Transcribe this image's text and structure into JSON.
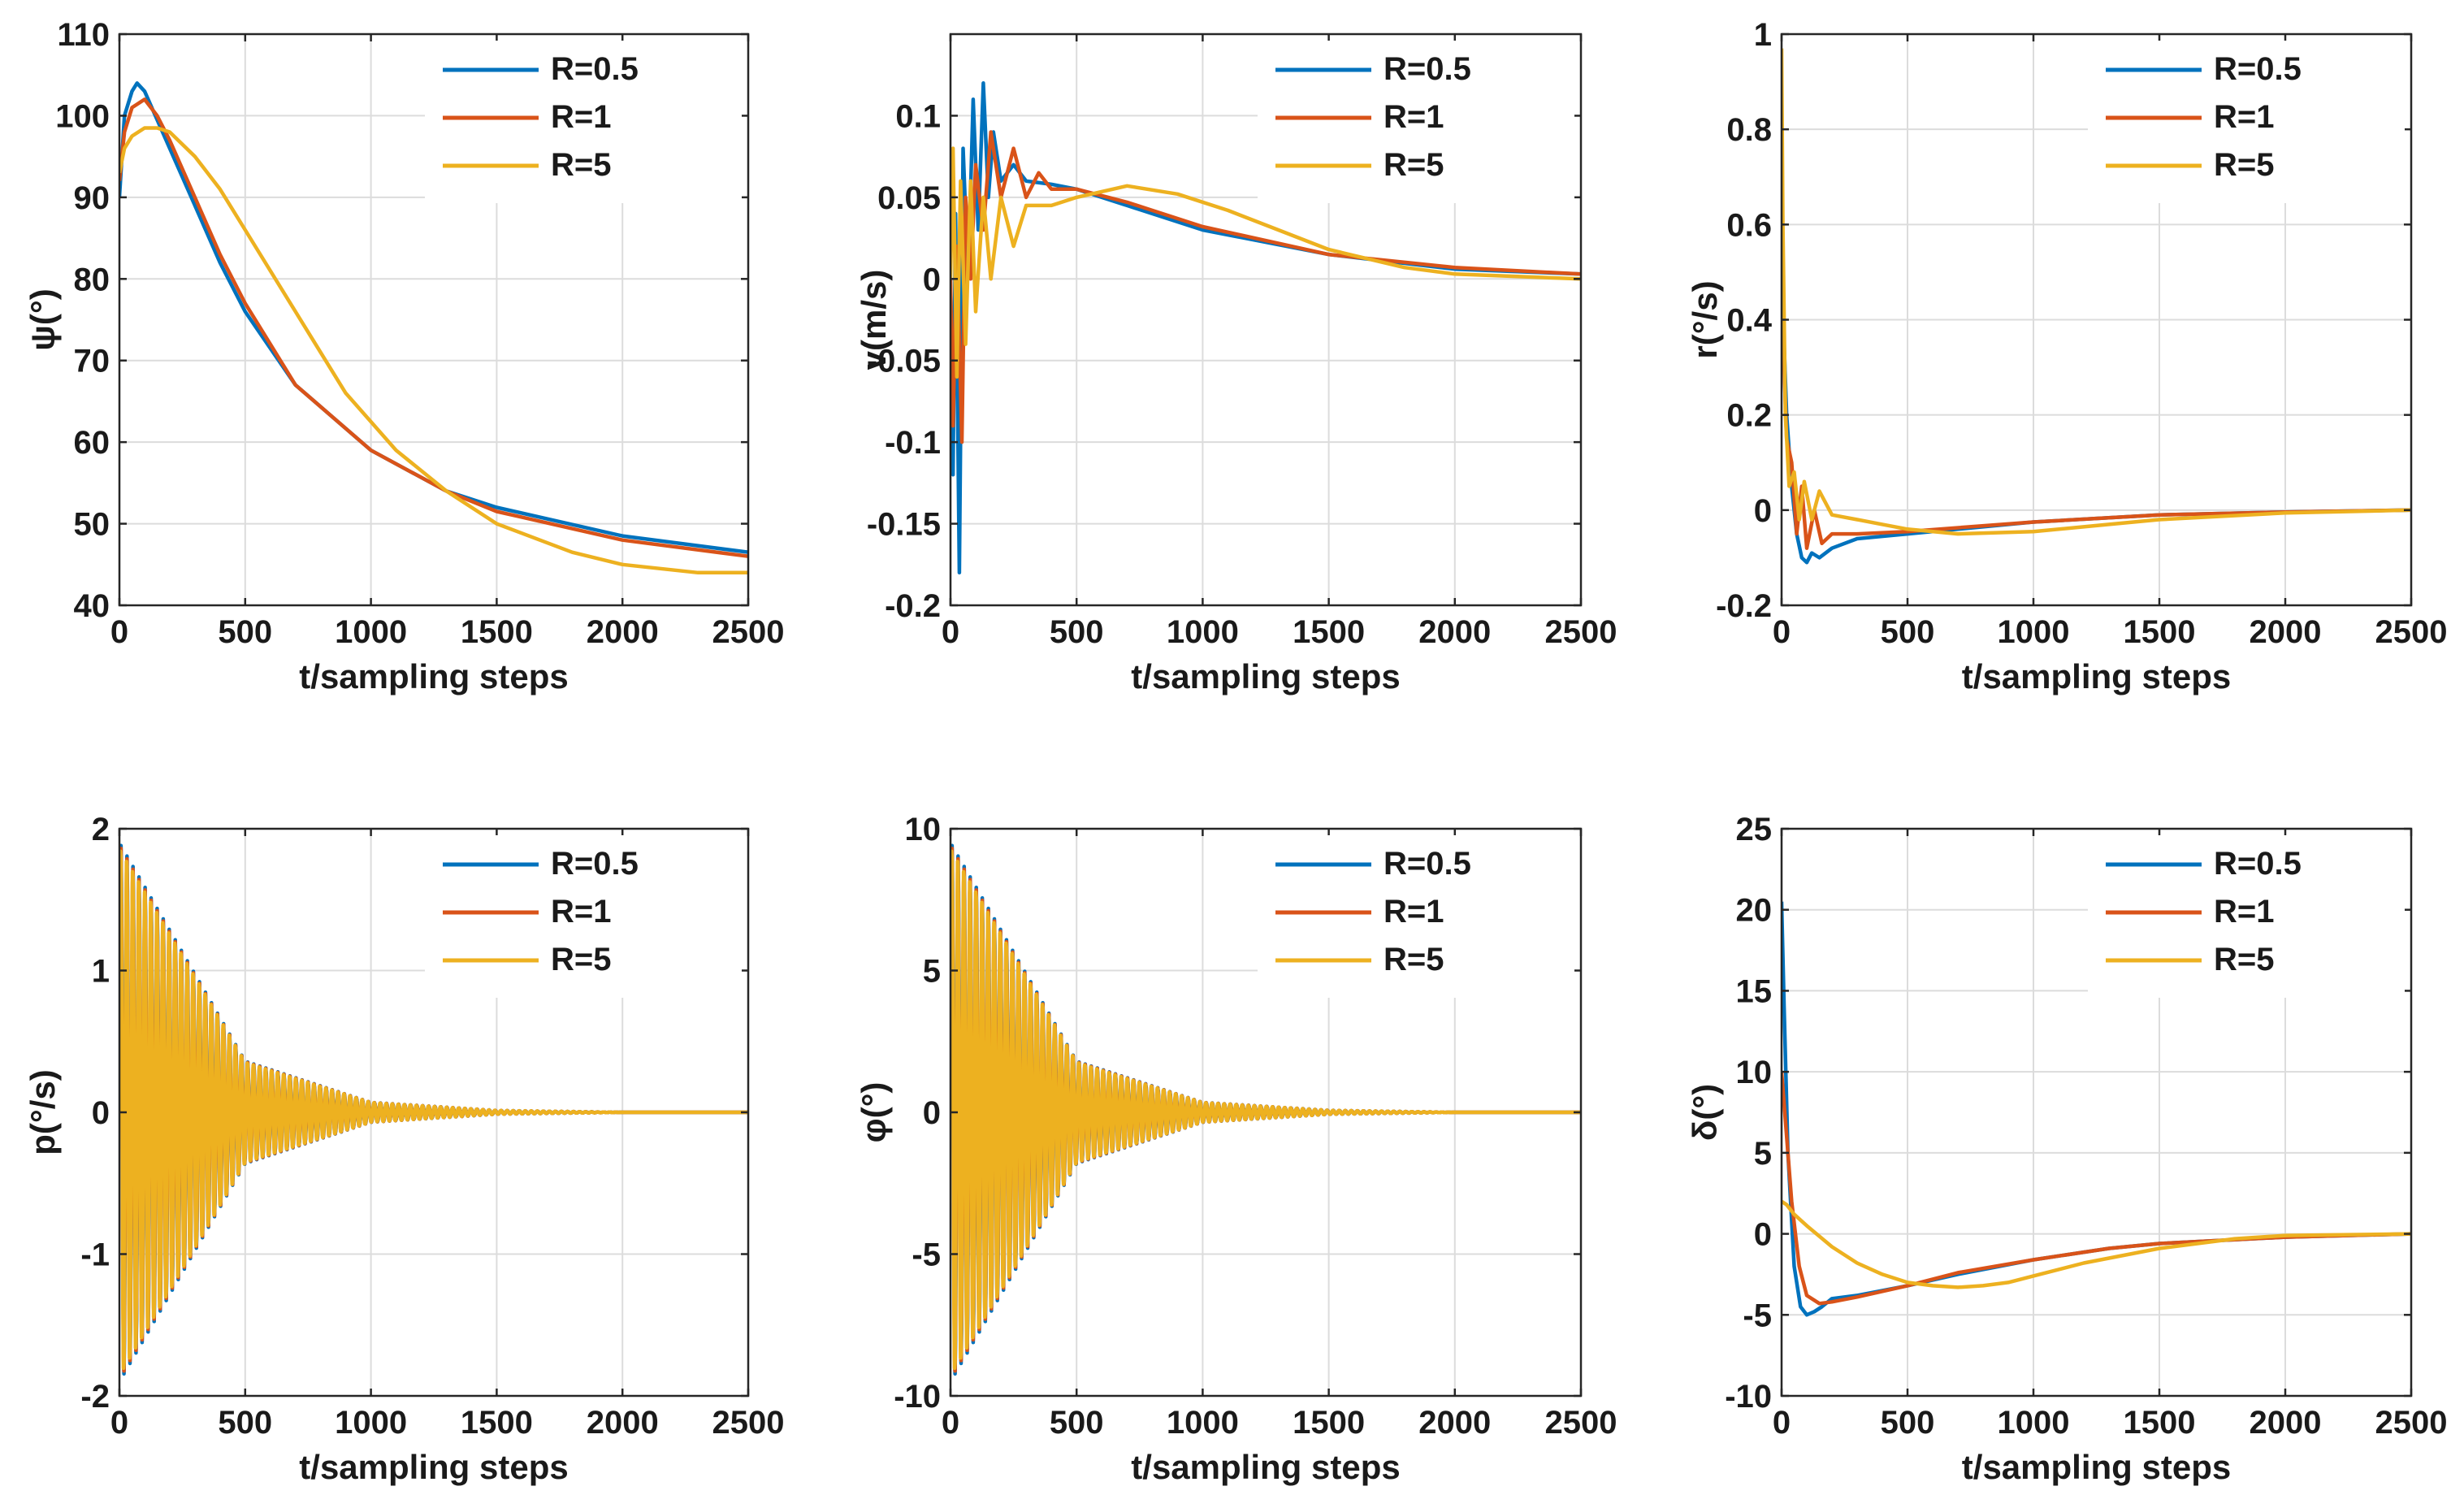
{
  "colors": {
    "R=0.5": "#0072BD",
    "R=1": "#D95319",
    "R=5": "#EDB120"
  },
  "chart_data": [
    {
      "type": "line",
      "ylabel": "ψ(°)",
      "xlabel": "t/sampling steps",
      "xlim": [
        0,
        2500
      ],
      "ylim": [
        40,
        110
      ],
      "xticks": [
        0,
        500,
        1000,
        1500,
        2000,
        2500
      ],
      "yticks": [
        40,
        50,
        60,
        70,
        80,
        90,
        100,
        110
      ],
      "grid": true,
      "legend": "top-right",
      "series": [
        {
          "name": "R=0.5",
          "x": [
            0,
            20,
            50,
            70,
            100,
            200,
            300,
            400,
            500,
            700,
            1000,
            1300,
            1500,
            2000,
            2500
          ],
          "y": [
            90,
            100,
            103,
            104,
            103,
            96,
            89,
            82,
            76,
            67,
            59,
            54,
            52,
            48.5,
            46.5
          ]
        },
        {
          "name": "R=1",
          "x": [
            0,
            20,
            50,
            100,
            150,
            200,
            300,
            400,
            500,
            700,
            1000,
            1300,
            1500,
            2000,
            2500
          ],
          "y": [
            92,
            98,
            101,
            102,
            100,
            97,
            90,
            83,
            77,
            67,
            59,
            54,
            51.5,
            48,
            46
          ]
        },
        {
          "name": "R=5",
          "x": [
            0,
            20,
            50,
            100,
            150,
            200,
            300,
            400,
            500,
            700,
            900,
            1100,
            1300,
            1500,
            1800,
            2000,
            2300,
            2500
          ],
          "y": [
            93,
            96,
            97.5,
            98.5,
            98.5,
            98,
            95,
            91,
            86,
            76,
            66,
            59,
            54,
            50,
            46.5,
            45,
            44,
            44
          ]
        }
      ]
    },
    {
      "type": "line",
      "ylabel": "v(m/s)",
      "xlabel": "t/sampling steps",
      "xlim": [
        0,
        2500
      ],
      "ylim": [
        -0.2,
        0.15
      ],
      "xticks": [
        0,
        500,
        1000,
        1500,
        2000,
        2500
      ],
      "yticks": [
        -0.2,
        -0.15,
        -0.1,
        -0.05,
        0,
        0.05,
        0.1
      ],
      "grid": true,
      "legend": "top-right",
      "series": [
        {
          "name": "R=0.5",
          "x": [
            0,
            10,
            20,
            35,
            50,
            70,
            90,
            110,
            130,
            150,
            170,
            200,
            250,
            300,
            400,
            500,
            700,
            1000,
            1500,
            2000,
            2500
          ],
          "y": [
            0,
            -0.12,
            0.04,
            -0.18,
            0.08,
            0.0,
            0.11,
            0.03,
            0.12,
            0.05,
            0.09,
            0.06,
            0.07,
            0.06,
            0.058,
            0.055,
            0.045,
            0.03,
            0.015,
            0.006,
            0.003
          ]
        },
        {
          "name": "R=1",
          "x": [
            0,
            10,
            25,
            45,
            60,
            80,
            100,
            130,
            160,
            200,
            250,
            300,
            350,
            400,
            500,
            700,
            1000,
            1500,
            2000,
            2500
          ],
          "y": [
            0,
            -0.09,
            0.02,
            -0.1,
            0.05,
            0.0,
            0.07,
            0.03,
            0.09,
            0.05,
            0.08,
            0.05,
            0.065,
            0.055,
            0.055,
            0.047,
            0.032,
            0.015,
            0.007,
            0.003
          ]
        },
        {
          "name": "R=5",
          "x": [
            0,
            10,
            25,
            40,
            60,
            80,
            100,
            130,
            160,
            200,
            250,
            300,
            400,
            500,
            700,
            900,
            1100,
            1300,
            1500,
            1800,
            2000,
            2500
          ],
          "y": [
            0,
            0.08,
            -0.06,
            0.06,
            -0.04,
            0.06,
            -0.02,
            0.05,
            0.0,
            0.05,
            0.02,
            0.045,
            0.045,
            0.05,
            0.057,
            0.052,
            0.042,
            0.03,
            0.018,
            0.007,
            0.003,
            0.0
          ]
        }
      ]
    },
    {
      "type": "line",
      "ylabel": "r(°/s)",
      "xlabel": "t/sampling steps",
      "xlim": [
        0,
        2500
      ],
      "ylim": [
        -0.2,
        1
      ],
      "xticks": [
        0,
        500,
        1000,
        1500,
        2000,
        2500
      ],
      "yticks": [
        -0.2,
        0,
        0.2,
        0.4,
        0.6,
        0.8,
        1
      ],
      "grid": true,
      "legend": "top-right",
      "series": [
        {
          "name": "R=0.5",
          "x": [
            0,
            10,
            20,
            40,
            60,
            80,
            100,
            120,
            150,
            200,
            300,
            500,
            1000,
            1500,
            2000,
            2500
          ],
          "y": [
            0.3,
            0.35,
            0.2,
            0.05,
            -0.05,
            -0.1,
            -0.11,
            -0.09,
            -0.1,
            -0.08,
            -0.06,
            -0.05,
            -0.025,
            -0.01,
            -0.004,
            0.0
          ]
        },
        {
          "name": "R=1",
          "x": [
            0,
            10,
            20,
            40,
            60,
            80,
            100,
            130,
            160,
            200,
            300,
            500,
            1000,
            1500,
            2000,
            2500
          ],
          "y": [
            0.45,
            0.3,
            0.15,
            0.1,
            -0.05,
            0.05,
            -0.08,
            0.0,
            -0.07,
            -0.05,
            -0.05,
            -0.045,
            -0.025,
            -0.01,
            -0.004,
            0.0
          ]
        },
        {
          "name": "R=5",
          "x": [
            0,
            5,
            15,
            30,
            50,
            70,
            90,
            120,
            150,
            200,
            300,
            400,
            500,
            700,
            1000,
            1300,
            1500,
            2000,
            2500
          ],
          "y": [
            0.97,
            0.6,
            0.2,
            0.05,
            0.08,
            -0.02,
            0.06,
            -0.02,
            0.04,
            -0.01,
            -0.02,
            -0.03,
            -0.04,
            -0.05,
            -0.045,
            -0.03,
            -0.02,
            -0.006,
            0.0
          ]
        }
      ]
    },
    {
      "type": "line",
      "ylabel": "p(°/s)",
      "xlabel": "t/sampling steps",
      "xlim": [
        0,
        2500
      ],
      "ylim": [
        -2,
        2
      ],
      "xticks": [
        0,
        500,
        1000,
        1500,
        2000,
        2500
      ],
      "yticks": [
        -2,
        -1,
        0,
        1,
        2
      ],
      "grid": true,
      "legend": "top-right",
      "oscillation": {
        "period": 24,
        "amplitude": 1.9,
        "decay": 300
      },
      "series": [
        {
          "name": "R=0.5",
          "envelope_x": [
            0,
            500,
            1000,
            1500,
            2000,
            2500
          ],
          "envelope_y": [
            1.9,
            0.36,
            0.07,
            0.013,
            0.0,
            0.0
          ]
        },
        {
          "name": "R=1",
          "envelope_x": [
            0,
            500,
            1000,
            1500,
            2000,
            2500
          ],
          "envelope_y": [
            1.9,
            0.36,
            0.07,
            0.013,
            0.0,
            0.0
          ]
        },
        {
          "name": "R=5",
          "envelope_x": [
            0,
            500,
            1000,
            1500,
            2000,
            2500
          ],
          "envelope_y": [
            1.9,
            0.36,
            0.07,
            0.013,
            0.0,
            0.0
          ]
        }
      ]
    },
    {
      "type": "line",
      "ylabel": "φ(°)",
      "xlabel": "t/sampling steps",
      "xlim": [
        0,
        2500
      ],
      "ylim": [
        -10,
        10
      ],
      "xticks": [
        0,
        500,
        1000,
        1500,
        2000,
        2500
      ],
      "yticks": [
        -10,
        -5,
        0,
        5,
        10
      ],
      "grid": true,
      "legend": "top-right",
      "oscillation": {
        "period": 24,
        "amplitude": 9.5,
        "decay": 300
      },
      "series": [
        {
          "name": "R=0.5",
          "envelope_x": [
            0,
            500,
            1000,
            1500,
            2000,
            2500
          ],
          "envelope_y": [
            9.5,
            1.8,
            0.35,
            0.07,
            0.0,
            0.0
          ]
        },
        {
          "name": "R=1",
          "envelope_x": [
            0,
            500,
            1000,
            1500,
            2000,
            2500
          ],
          "envelope_y": [
            9.5,
            1.8,
            0.35,
            0.07,
            0.0,
            0.0
          ]
        },
        {
          "name": "R=5",
          "envelope_x": [
            0,
            500,
            1000,
            1500,
            2000,
            2500
          ],
          "envelope_y": [
            9.5,
            1.8,
            0.35,
            0.07,
            0.0,
            0.0
          ]
        }
      ]
    },
    {
      "type": "line",
      "ylabel": "δ(°)",
      "xlabel": "t/sampling steps",
      "xlim": [
        0,
        2500
      ],
      "ylim": [
        -10,
        25
      ],
      "xticks": [
        0,
        500,
        1000,
        1500,
        2000,
        2500
      ],
      "yticks": [
        -10,
        -5,
        0,
        5,
        10,
        15,
        20,
        25
      ],
      "grid": true,
      "legend": "top-right",
      "series": [
        {
          "name": "R=0.5",
          "x": [
            0,
            10,
            25,
            50,
            75,
            100,
            130,
            160,
            200,
            300,
            500,
            700,
            1000,
            1300,
            1500,
            2000,
            2500
          ],
          "y": [
            20.5,
            14,
            5,
            -2,
            -4.5,
            -5,
            -4.8,
            -4.5,
            -4,
            -3.8,
            -3.2,
            -2.5,
            -1.6,
            -0.9,
            -0.6,
            -0.2,
            0.0
          ]
        },
        {
          "name": "R=1",
          "x": [
            0,
            15,
            40,
            70,
            100,
            150,
            200,
            300,
            500,
            700,
            1000,
            1300,
            1500,
            2000,
            2500
          ],
          "y": [
            10,
            7,
            2,
            -2,
            -3.8,
            -4.3,
            -4.2,
            -3.9,
            -3.2,
            -2.4,
            -1.6,
            -0.9,
            -0.6,
            -0.2,
            0.0
          ]
        },
        {
          "name": "R=5",
          "x": [
            0,
            20,
            50,
            100,
            200,
            300,
            400,
            500,
            600,
            700,
            800,
            900,
            1000,
            1200,
            1500,
            1800,
            2000,
            2500
          ],
          "y": [
            2,
            1.8,
            1.2,
            0.5,
            -0.8,
            -1.8,
            -2.5,
            -3.0,
            -3.2,
            -3.3,
            -3.2,
            -3.0,
            -2.6,
            -1.8,
            -0.9,
            -0.3,
            -0.1,
            0.0
          ]
        }
      ]
    }
  ]
}
